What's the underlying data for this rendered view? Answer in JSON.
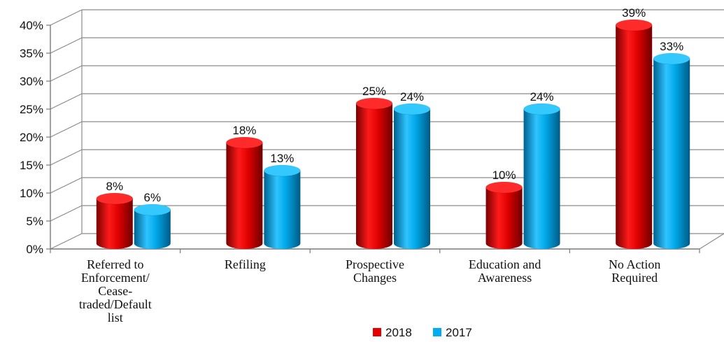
{
  "chart_data": {
    "type": "bar",
    "categories": [
      [
        "Referred to",
        "Enforcement/",
        "Cease-",
        "traded/Default",
        "list"
      ],
      [
        "Refiling"
      ],
      [
        "Prospective",
        "Changes"
      ],
      [
        "Education and",
        "Awareness"
      ],
      [
        "No Action",
        "Required"
      ]
    ],
    "series": [
      {
        "name": "2018",
        "values": [
          8,
          18,
          25,
          10,
          39
        ],
        "labels": [
          "8%",
          "18%",
          "25%",
          "10%",
          "39%"
        ],
        "color": "#e60000"
      },
      {
        "name": "2017",
        "values": [
          6,
          13,
          24,
          24,
          33
        ],
        "labels": [
          "6%",
          "13%",
          "24%",
          "24%",
          "33%"
        ],
        "color": "#00aeef"
      }
    ],
    "ylim": [
      0,
      40
    ],
    "yticks": [
      "0%",
      "5%",
      "10%",
      "15%",
      "20%",
      "25%",
      "30%",
      "35%",
      "40%"
    ],
    "grid": true,
    "legend_position": "bottom",
    "style": "3d-cylinder"
  }
}
